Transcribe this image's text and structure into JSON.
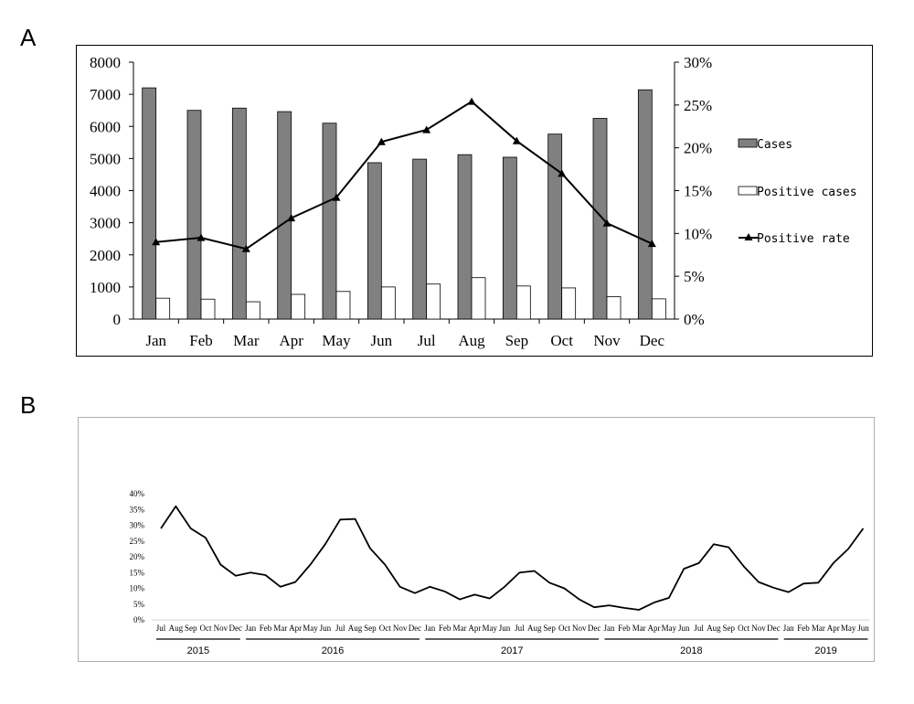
{
  "panels": {
    "a": "A",
    "b": "B"
  },
  "chart_data": [
    {
      "type": "bar",
      "categories": [
        "Jan",
        "Feb",
        "Mar",
        "Apr",
        "May",
        "Jun",
        "Jul",
        "Aug",
        "Sep",
        "Oct",
        "Nov",
        "Dec"
      ],
      "series": [
        {
          "name": "Cases",
          "kind": "bar",
          "color": "#808080",
          "values": [
            7200,
            6500,
            6570,
            6460,
            6100,
            4870,
            4980,
            5120,
            5040,
            5760,
            6250,
            7140
          ]
        },
        {
          "name": "Positive cases",
          "kind": "bar",
          "color": "#ffffff",
          "values": [
            650,
            620,
            540,
            770,
            860,
            1000,
            1090,
            1290,
            1030,
            970,
            700,
            630
          ]
        },
        {
          "name": "Positive rate",
          "kind": "line",
          "axis": "right",
          "color": "#000000",
          "values": [
            9.0,
            9.5,
            8.2,
            11.8,
            14.2,
            20.7,
            22.1,
            25.4,
            20.8,
            17.0,
            11.2,
            8.8
          ]
        }
      ],
      "left_ylim": [
        0,
        8000
      ],
      "left_ticks": [
        "0",
        "1000",
        "2000",
        "3000",
        "4000",
        "5000",
        "6000",
        "7000",
        "8000"
      ],
      "right_ylim": [
        0,
        30
      ],
      "right_ticks": [
        "0%",
        "5%",
        "10%",
        "15%",
        "20%",
        "25%",
        "30%"
      ],
      "legend": "right"
    },
    {
      "type": "line",
      "x": [
        "Jul",
        "Aug",
        "Sep",
        "Oct",
        "Nov",
        "Dec",
        "Jan",
        "Feb",
        "Mar",
        "Apr",
        "May",
        "Jun",
        "Jul",
        "Aug",
        "Sep",
        "Oct",
        "Nov",
        "Dec",
        "Jan",
        "Feb",
        "Mar",
        "Apr",
        "May",
        "Jun",
        "Jul",
        "Aug",
        "Sep",
        "Oct",
        "Nov",
        "Dec",
        "Jan",
        "Feb",
        "Mar",
        "Apr",
        "May",
        "Jun",
        "Jul",
        "Aug",
        "Sep",
        "Oct",
        "Nov",
        "Dec",
        "Jan",
        "Feb",
        "Mar",
        "Apr",
        "May",
        "Jun"
      ],
      "values": [
        29,
        36,
        29,
        26,
        17.5,
        14,
        15,
        14.2,
        10.5,
        12,
        17.5,
        24,
        31.8,
        32,
        22.7,
        17.5,
        10.5,
        8.5,
        10.5,
        9,
        6.5,
        8,
        6.8,
        10.5,
        15,
        15.5,
        11.8,
        10,
        6.5,
        4,
        4.6,
        3.8,
        3.2,
        5.5,
        7,
        16.2,
        18,
        24,
        23,
        17,
        12,
        10.2,
        8.8,
        11.5,
        11.8,
        18,
        22.5,
        29
      ],
      "years": [
        {
          "label": "2015",
          "start": 0,
          "end": 5
        },
        {
          "label": "2016",
          "start": 6,
          "end": 17
        },
        {
          "label": "2017",
          "start": 18,
          "end": 29
        },
        {
          "label": "2018",
          "start": 30,
          "end": 41
        },
        {
          "label": "2019",
          "start": 42,
          "end": 47
        }
      ],
      "ylim": [
        0,
        40
      ],
      "yticks": [
        "0%",
        "5%",
        "10%",
        "15%",
        "20%",
        "25%",
        "30%",
        "35%",
        "40%"
      ],
      "color": "#000000"
    }
  ]
}
